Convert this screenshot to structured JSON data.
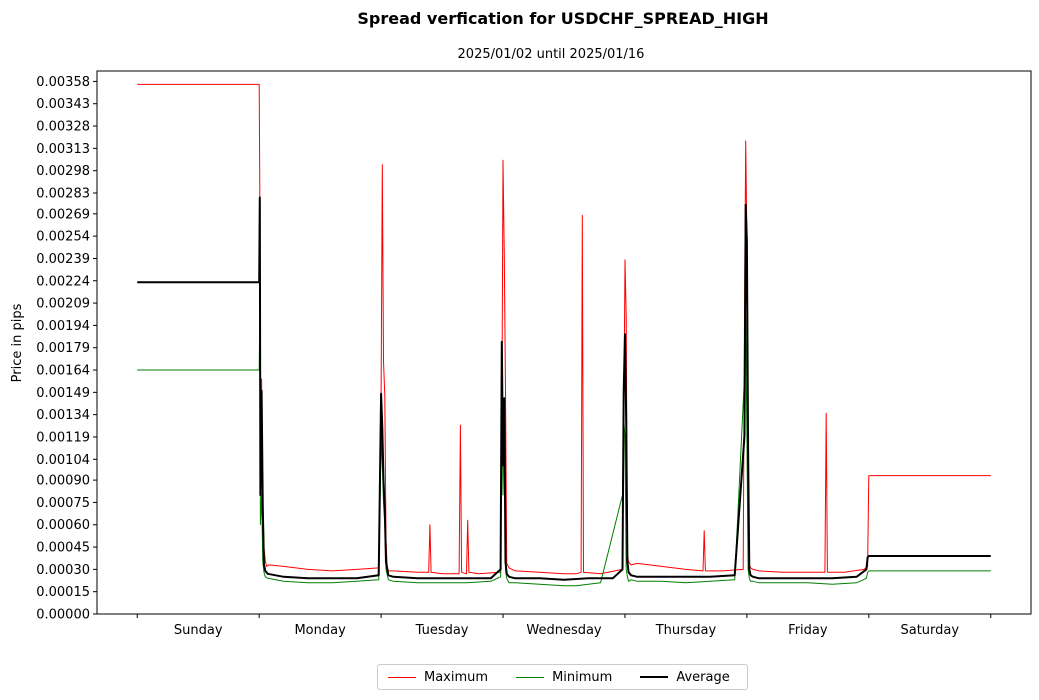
{
  "chart_data": {
    "type": "line",
    "title": "Spread verfication for USDCHF_SPREAD_HIGH",
    "subtitle": "2025/01/02 until 2025/01/16",
    "xlabel": "",
    "ylabel": "Price in pips",
    "x_tick_labels": [
      "Sunday",
      "Monday",
      "Tuesday",
      "Wednesday",
      "Thursday",
      "Friday",
      "Saturday"
    ],
    "x_range_days": [
      -0.33,
      7.33
    ],
    "ylim": [
      0,
      0.00365
    ],
    "y_ticks": [
      "0.00000",
      "0.00015",
      "0.00030",
      "0.00045",
      "0.00060",
      "0.00075",
      "0.00090",
      "0.00104",
      "0.00119",
      "0.00134",
      "0.00149",
      "0.00164",
      "0.00179",
      "0.00194",
      "0.00209",
      "0.00224",
      "0.00239",
      "0.00254",
      "0.00269",
      "0.00283",
      "0.00298",
      "0.00313",
      "0.00328",
      "0.00343",
      "0.00358"
    ],
    "grid": false,
    "legend_position": "bottom-center",
    "series": [
      {
        "name": "Maximum",
        "color": "#ff0000",
        "stroke": 1,
        "x": [
          0.0,
          1.0,
          1.005,
          1.01,
          1.02,
          1.03,
          1.04,
          1.05,
          1.06,
          1.08,
          1.2,
          1.4,
          1.6,
          1.8,
          1.98,
          2.0,
          2.01,
          2.02,
          2.03,
          2.04,
          2.05,
          2.06,
          2.1,
          2.3,
          2.39,
          2.4,
          2.41,
          2.5,
          2.64,
          2.65,
          2.66,
          2.7,
          2.71,
          2.72,
          2.8,
          2.98,
          2.99,
          3.0,
          3.01,
          3.02,
          3.03,
          3.05,
          3.1,
          3.3,
          3.5,
          3.6,
          3.64,
          3.65,
          3.66,
          3.8,
          3.98,
          3.99,
          4.0,
          4.01,
          4.02,
          4.03,
          4.05,
          4.1,
          4.3,
          4.5,
          4.64,
          4.65,
          4.66,
          4.8,
          4.97,
          4.98,
          4.99,
          5.0,
          5.01,
          5.02,
          5.03,
          5.05,
          5.1,
          5.3,
          5.5,
          5.64,
          5.65,
          5.66,
          5.8,
          5.96,
          5.99,
          6.0,
          7.0
        ],
        "values": [
          0.00356,
          0.00356,
          0.00285,
          0.0011,
          0.00158,
          0.0008,
          0.00044,
          0.00036,
          0.00032,
          0.00033,
          0.00032,
          0.0003,
          0.00029,
          0.0003,
          0.00031,
          0.00148,
          0.00302,
          0.0017,
          0.00147,
          0.0005,
          0.00032,
          0.00029,
          0.00029,
          0.00028,
          0.00028,
          0.0006,
          0.00028,
          0.00027,
          0.00027,
          0.00127,
          0.00028,
          0.00027,
          0.00063,
          0.00028,
          0.00027,
          0.00028,
          0.0012,
          0.00305,
          0.0024,
          0.0015,
          0.00034,
          0.00031,
          0.00029,
          0.00028,
          0.00027,
          0.00027,
          0.00028,
          0.00268,
          0.00028,
          0.00027,
          0.0003,
          0.0012,
          0.00238,
          0.002,
          0.0004,
          0.00035,
          0.00033,
          0.00034,
          0.00032,
          0.0003,
          0.00029,
          0.00056,
          0.00029,
          0.00029,
          0.0003,
          0.002,
          0.00318,
          0.0025,
          0.0004,
          0.00033,
          0.00031,
          0.0003,
          0.00029,
          0.00028,
          0.00028,
          0.00028,
          0.00135,
          0.00028,
          0.00028,
          0.0003,
          0.00032,
          0.00093,
          0.00093
        ]
      },
      {
        "name": "Minimum",
        "color": "#008000",
        "stroke": 1,
        "x": [
          0.0,
          1.0,
          1.005,
          1.01,
          1.02,
          1.03,
          1.04,
          1.05,
          1.07,
          1.2,
          1.4,
          1.6,
          1.8,
          1.98,
          2.0,
          2.01,
          2.02,
          2.03,
          2.04,
          2.06,
          2.1,
          2.3,
          2.5,
          2.7,
          2.9,
          2.98,
          2.99,
          3.0,
          3.01,
          3.02,
          3.03,
          3.05,
          3.1,
          3.3,
          3.5,
          3.6,
          3.7,
          3.8,
          3.98,
          3.99,
          4.0,
          4.01,
          4.02,
          4.03,
          4.05,
          4.1,
          4.3,
          4.5,
          4.7,
          4.9,
          4.98,
          4.99,
          5.0,
          5.01,
          5.02,
          5.03,
          5.05,
          5.1,
          5.3,
          5.5,
          5.7,
          5.9,
          5.98,
          5.99,
          6.0,
          7.0
        ],
        "values": [
          0.00164,
          0.00164,
          0.002,
          0.0006,
          0.0008,
          0.00035,
          0.00028,
          0.00025,
          0.00024,
          0.00022,
          0.00021,
          0.00021,
          0.00022,
          0.00023,
          0.0012,
          0.001,
          0.00075,
          0.0006,
          0.0003,
          0.00023,
          0.00022,
          0.00021,
          0.00021,
          0.00021,
          0.00022,
          0.00025,
          0.0014,
          0.0008,
          0.0013,
          0.0003,
          0.00024,
          0.00021,
          0.00021,
          0.0002,
          0.00019,
          0.00019,
          0.0002,
          0.00021,
          0.0008,
          0.0013,
          0.0012,
          0.0003,
          0.00025,
          0.00022,
          0.00023,
          0.00022,
          0.00022,
          0.00021,
          0.00022,
          0.00023,
          0.0016,
          0.002,
          0.0012,
          0.0003,
          0.00024,
          0.00022,
          0.00022,
          0.00021,
          0.00021,
          0.00021,
          0.0002,
          0.00021,
          0.00024,
          0.00028,
          0.00029,
          0.00029
        ]
      },
      {
        "name": "Average",
        "color": "#000000",
        "stroke": 2,
        "x": [
          0.0,
          1.0,
          1.005,
          1.01,
          1.02,
          1.03,
          1.04,
          1.05,
          1.07,
          1.2,
          1.4,
          1.6,
          1.8,
          1.98,
          2.0,
          2.01,
          2.02,
          2.03,
          2.04,
          2.06,
          2.1,
          2.3,
          2.5,
          2.7,
          2.9,
          2.98,
          2.99,
          3.0,
          3.01,
          3.02,
          3.03,
          3.05,
          3.1,
          3.3,
          3.5,
          3.7,
          3.9,
          3.98,
          3.99,
          4.0,
          4.01,
          4.02,
          4.03,
          4.05,
          4.1,
          4.3,
          4.5,
          4.7,
          4.9,
          4.98,
          4.99,
          5.0,
          5.01,
          5.02,
          5.03,
          5.05,
          5.1,
          5.3,
          5.5,
          5.7,
          5.9,
          5.98,
          5.99,
          6.0,
          7.0
        ],
        "values": [
          0.00223,
          0.00223,
          0.0028,
          0.0008,
          0.0015,
          0.0007,
          0.00033,
          0.00029,
          0.00027,
          0.00025,
          0.00024,
          0.00024,
          0.00024,
          0.00026,
          0.00148,
          0.00125,
          0.0009,
          0.0007,
          0.00035,
          0.00026,
          0.00025,
          0.00024,
          0.00024,
          0.00024,
          0.00024,
          0.0003,
          0.00183,
          0.001,
          0.00145,
          0.00035,
          0.00027,
          0.00025,
          0.00024,
          0.00024,
          0.00023,
          0.00024,
          0.00024,
          0.0003,
          0.0015,
          0.00188,
          0.0013,
          0.00035,
          0.00028,
          0.00026,
          0.00025,
          0.00025,
          0.00025,
          0.00025,
          0.00026,
          0.0012,
          0.00275,
          0.0025,
          0.0011,
          0.0003,
          0.00026,
          0.00025,
          0.00024,
          0.00024,
          0.00024,
          0.00024,
          0.00025,
          0.0003,
          0.00038,
          0.00039,
          0.00039
        ]
      }
    ]
  }
}
